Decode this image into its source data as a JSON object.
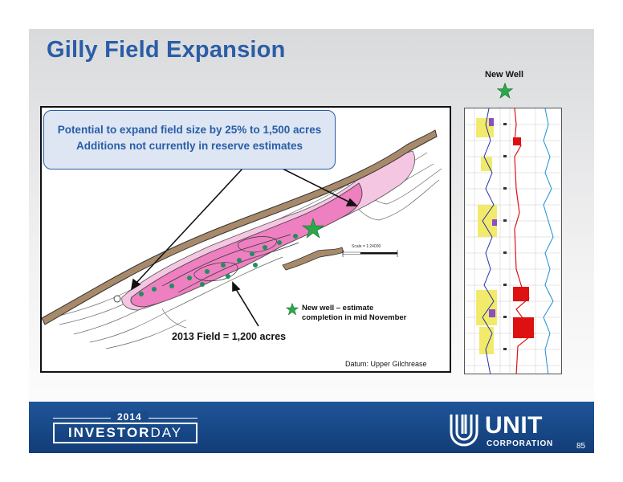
{
  "slide": {
    "title": "Gilly Field Expansion",
    "callout": {
      "line1": "Potential to expand field size by 25% to 1,500 acres",
      "line2": "Additions not currently in reserve estimates"
    },
    "field_label": "2013 Field = 1,200 acres",
    "legend": {
      "icon": "star-icon",
      "line1": "New well – estimate",
      "line2": "completion in mid November"
    },
    "datum": "Datum: Upper Gilchrease",
    "scale_label": "Scale = 1:24000",
    "new_well_label": "New Well",
    "colors": {
      "title": "#2a5da8",
      "field": "#ee7fc0",
      "field_light": "#f5c6e2",
      "well_dot": "#1f8f5f",
      "star": "#2aa84a",
      "footer": "#1a4a8a",
      "fault": "#a88a6a"
    }
  },
  "footer": {
    "year": "2014",
    "event_bold": "INVESTOR",
    "event_light": "DAY",
    "company": "UNIT",
    "company_sub": "CORPORATION",
    "page_number": "85"
  }
}
